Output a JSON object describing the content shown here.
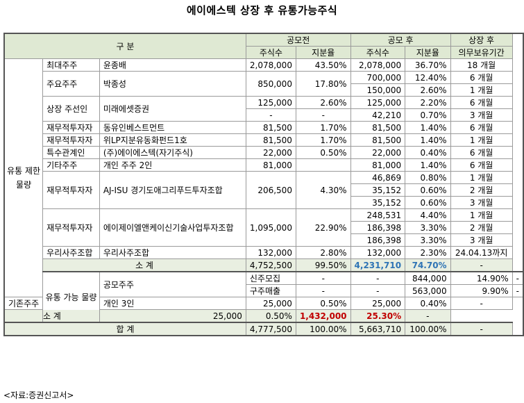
{
  "title": "에이에스텍 상장 후 유통가능주식",
  "header": {
    "category": "구 분",
    "before_ipo": "공모전",
    "after_ipo": "공모 후",
    "lockup_after_listing": "상장 후",
    "shares": "주식수",
    "ratio": "지분율",
    "lockup_period": "의무보유기간"
  },
  "groups": {
    "restricted": "유통 제한 물량",
    "tradable": "유통 가능 물량"
  },
  "restricted_rows": [
    {
      "holder": "최대주주",
      "name": "윤종배",
      "pre_shares": "2,078,000",
      "pre_ratio": "43.50%",
      "post_shares": "2,078,000",
      "post_ratio": "36.70%",
      "lockup": "18 개월"
    },
    {
      "holder": "주요주주",
      "name": "박종성",
      "pre_shares": "850,000",
      "pre_ratio": "17.80%",
      "post": [
        {
          "shares": "700,000",
          "ratio": "12.40%",
          "lockup": "6 개월"
        },
        {
          "shares": "150,000",
          "ratio": "2.60%",
          "lockup": "1 개월"
        }
      ]
    },
    {
      "holder": "상장 주선인",
      "name": "미래에셋증권",
      "pre": [
        {
          "shares": "125,000",
          "ratio": "2.60%"
        },
        {
          "shares": "-",
          "ratio": "-"
        }
      ],
      "post": [
        {
          "shares": "125,000",
          "ratio": "2.20%",
          "lockup": "6 개월"
        },
        {
          "shares": "42,210",
          "ratio": "0.70%",
          "lockup": "3 개월"
        }
      ]
    },
    {
      "holder": "재무적투자자",
      "name": "동유인베스트먼트",
      "pre_shares": "81,500",
      "pre_ratio": "1.70%",
      "post_shares": "81,500",
      "post_ratio": "1.40%",
      "lockup": "6 개월"
    },
    {
      "holder": "재무적투자자",
      "name": "위LP지분유동화펀드1호",
      "pre_shares": "81,500",
      "pre_ratio": "1.70%",
      "post_shares": "81,500",
      "post_ratio": "1.40%",
      "lockup": "1 개월"
    },
    {
      "holder": "특수관계인",
      "name": "(주)에이에스텍(자기주식)",
      "pre_shares": "22,000",
      "pre_ratio": "0.50%",
      "post_shares": "22,000",
      "post_ratio": "0.40%",
      "lockup": "6 개월"
    },
    {
      "holder": "기타주주",
      "name": "개인 주주 2인",
      "pre_shares": "81,000",
      "pre_ratio": "",
      "post_shares": "81,000",
      "post_ratio": "1.40%",
      "lockup": "6 개월"
    },
    {
      "holder": "재무적투자자",
      "name": "AJ-ISU 경기도애그리푸드투자조합",
      "pre_shares": "206,500",
      "pre_ratio": "4.30%",
      "post": [
        {
          "shares": "46,869",
          "ratio": "0.80%",
          "lockup": "1 개월"
        },
        {
          "shares": "35,152",
          "ratio": "0.60%",
          "lockup": "2 개월"
        },
        {
          "shares": "35,152",
          "ratio": "0.60%",
          "lockup": "3 개월"
        }
      ]
    },
    {
      "holder": "재무적투자자",
      "name": "에이제이엘앤케이신기술사업투자조합",
      "pre_shares": "1,095,000",
      "pre_ratio": "22.90%",
      "post": [
        {
          "shares": "248,531",
          "ratio": "4.40%",
          "lockup": "1 개월"
        },
        {
          "shares": "186,398",
          "ratio": "3.30%",
          "lockup": "2 개월"
        },
        {
          "shares": "186,398",
          "ratio": "3.30%",
          "lockup": "3 개월"
        }
      ]
    },
    {
      "holder": "우리사주조합",
      "name": "우리사주조합",
      "pre_shares": "132,000",
      "pre_ratio": "2.80%",
      "post_shares": "132,000",
      "post_ratio": "2.30%",
      "lockup": "24.04.13까지"
    }
  ],
  "restricted_subtotal": {
    "label": "소 계",
    "pre_shares": "4,752,500",
    "pre_ratio": "99.50%",
    "post_shares": "4,231,710",
    "post_ratio": "74.70%",
    "lockup": "-"
  },
  "tradable_rows": [
    {
      "holder": "공모주주",
      "name": "신주모집",
      "pre_shares": "-",
      "pre_ratio": "-",
      "post_shares": "844,000",
      "post_ratio": "14.90%",
      "lockup": "-"
    },
    {
      "holder": "",
      "name": "구주매출",
      "pre_shares": "-",
      "pre_ratio": "-",
      "post_shares": "563,000",
      "post_ratio": "9.90%",
      "lockup": "-"
    },
    {
      "holder": "기존주주",
      "name": "개인 3인",
      "pre_shares": "25,000",
      "pre_ratio": "0.50%",
      "post_shares": "25,000",
      "post_ratio": "0.40%",
      "lockup": "-"
    }
  ],
  "tradable_subtotal": {
    "label": "소 계",
    "pre_shares": "25,000",
    "pre_ratio": "0.50%",
    "post_shares": "1,432,000",
    "post_ratio": "25.30%",
    "lockup": "-"
  },
  "total": {
    "label": "합 계",
    "pre_shares": "4,777,500",
    "pre_ratio": "100.00%",
    "post_shares": "5,663,710",
    "post_ratio": "100.00%",
    "lockup": "-"
  },
  "source": "<자료:증권신고서>"
}
